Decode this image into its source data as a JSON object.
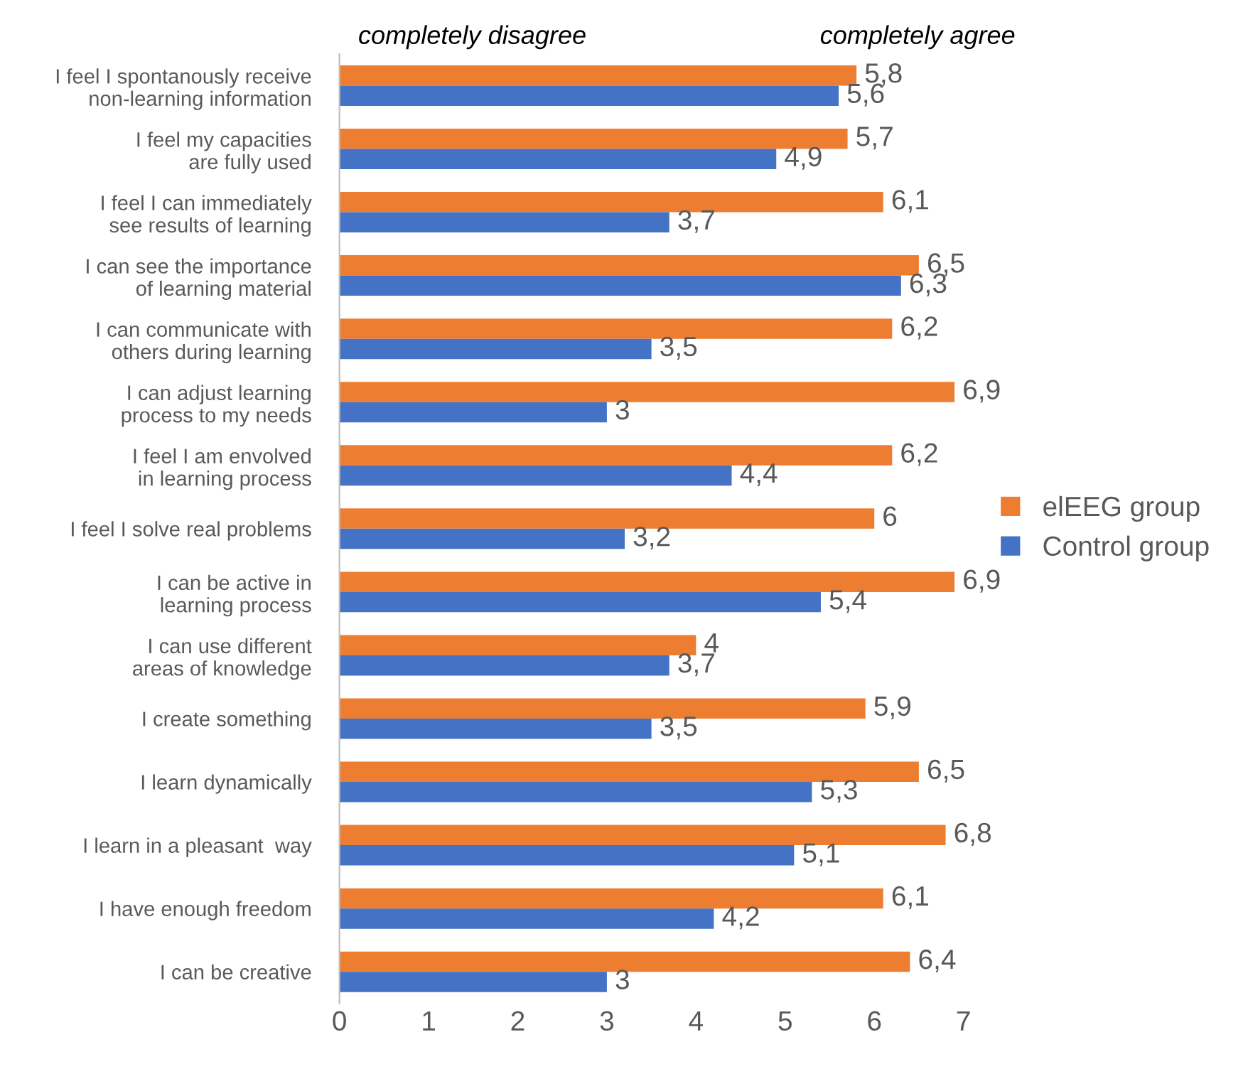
{
  "chart_data": {
    "type": "bar",
    "orientation": "horizontal",
    "categories": [
      "I feel I spontanously receive\nnon-learning information",
      "I feel my capacities\nare fully used",
      "I feel I can immediately\nsee results of learning",
      "I can see the importance\nof learning material",
      "I can communicate with\nothers during learning",
      "I can adjust learning\nprocess to my needs",
      "I feel I am envolved\nin learning process",
      "I feel I solve real problems",
      "I can be active in\nlearning process",
      "I can use different\nareas of knowledge",
      "I create something",
      "I learn dynamically",
      "I learn in a pleasant  way",
      "I have enough freedom",
      "I can be creative"
    ],
    "series": [
      {
        "name": "elEEG group",
        "color": "#ed7d31",
        "values": [
          5.8,
          5.7,
          6.1,
          6.5,
          6.2,
          6.9,
          6.2,
          6,
          6.9,
          4,
          5.9,
          6.5,
          6.8,
          6.1,
          6.4
        ],
        "value_labels": [
          "5,8",
          "5,7",
          "6,1",
          "6,5",
          "6,2",
          "6,9",
          "6,2",
          "6",
          "6,9",
          "4",
          "5,9",
          "6,5",
          "6,8",
          "6,1",
          "6,4"
        ]
      },
      {
        "name": "Control group",
        "color": "#4472c4",
        "values": [
          5.6,
          4.9,
          3.7,
          6.3,
          3.5,
          3,
          4.4,
          3.2,
          5.4,
          3.7,
          3.5,
          5.3,
          5.1,
          4.2,
          3
        ],
        "value_labels": [
          "5,6",
          "4,9",
          "3,7",
          "6,3",
          "3,5",
          "3",
          "4,4",
          "3,2",
          "5,4",
          "3,7",
          "3,5",
          "5,3",
          "5,1",
          "4,2",
          "3"
        ]
      }
    ],
    "xlim": [
      0,
      7
    ],
    "xticks": [
      0,
      1,
      2,
      3,
      4,
      5,
      6,
      7
    ],
    "annotations": [
      "completely disagree",
      "completely agree"
    ],
    "legend": "right",
    "grid": false
  }
}
